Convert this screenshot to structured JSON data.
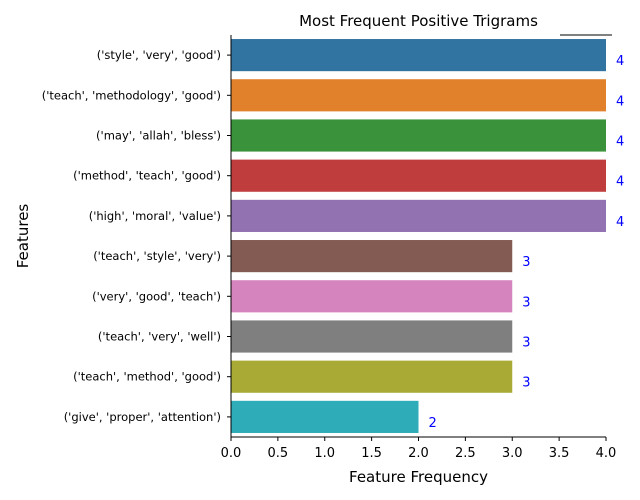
{
  "chart_data": {
    "type": "bar",
    "orientation": "horizontal",
    "title": "Most Frequent Positive Trigrams",
    "xlabel": "Feature Frequency",
    "ylabel": "Features",
    "xlim": [
      0,
      4.0
    ],
    "xticks": [
      "0.0",
      "0.5",
      "1.0",
      "1.5",
      "2.0",
      "2.5",
      "3.0",
      "3.5",
      "4.0"
    ],
    "grid": false,
    "value_label_color": "#0000ff",
    "categories": [
      "('style', 'very', 'good')",
      "('teach', 'methodology', 'good')",
      "('may', 'allah', 'bless')",
      "('method', 'teach', 'good')",
      "('high', 'moral', 'value')",
      "('teach', 'style', 'very')",
      "('very', 'good', 'teach')",
      "('teach', 'very', 'well')",
      "('teach', 'method', 'good')",
      "('give', 'proper', 'attention')"
    ],
    "values": [
      4,
      4,
      4,
      4,
      4,
      3,
      3,
      3,
      3,
      2
    ],
    "value_labels": [
      "4",
      "4",
      "4",
      "4",
      "4",
      "3",
      "3",
      "3",
      "3",
      "2"
    ],
    "colors": [
      "#3274a1",
      "#e1812c",
      "#3a923a",
      "#c03d3e",
      "#9372b2",
      "#845b53",
      "#d684bd",
      "#7f7f7f",
      "#a9aa35",
      "#2eadb8"
    ]
  }
}
